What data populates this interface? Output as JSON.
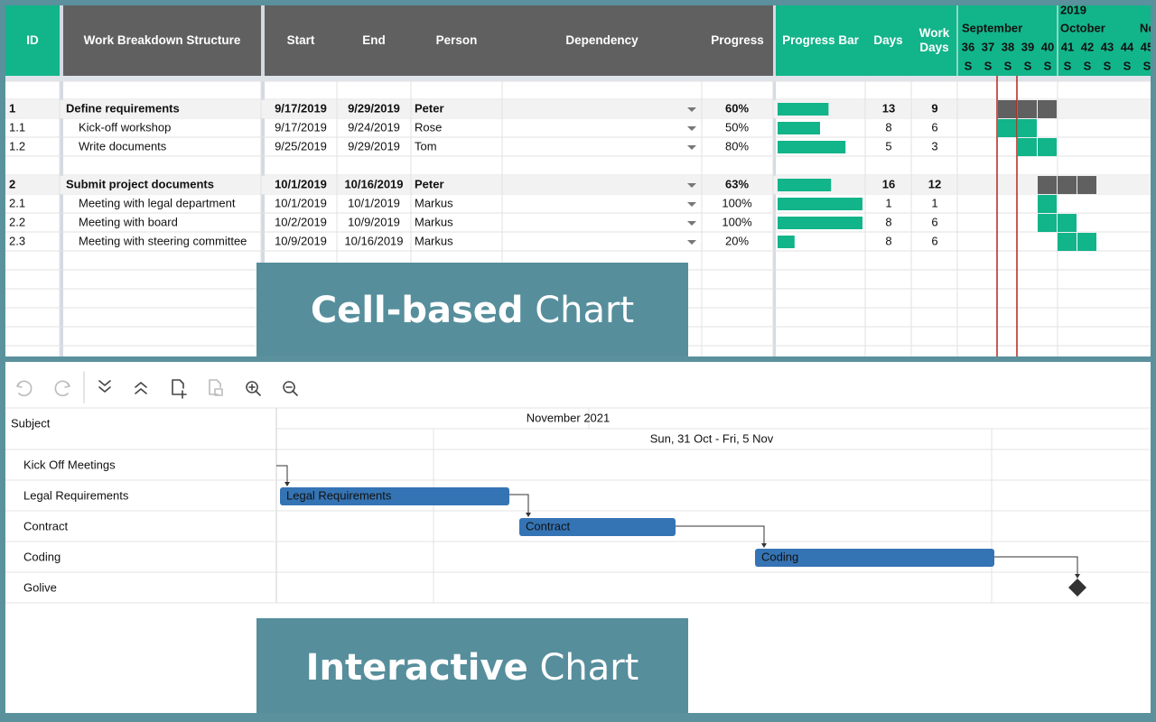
{
  "sheet": {
    "columns": [
      "ID",
      "Work Breakdown Structure",
      "Start",
      "End",
      "Person",
      "Dependency",
      "Progress",
      "Progress Bar",
      "Days",
      "Work Days"
    ],
    "year": "2019",
    "months": [
      "September",
      "October",
      "No"
    ],
    "weeks": [
      36,
      37,
      38,
      39,
      40,
      41,
      42,
      43,
      44,
      45
    ],
    "week_days": [
      "S",
      "S",
      "S",
      "S",
      "S",
      "S",
      "S",
      "S",
      "S",
      "S"
    ],
    "rows": [
      {
        "id": "1",
        "name": "Define requirements",
        "start": "9/17/2019",
        "end": "9/29/2019",
        "person": "Peter",
        "progress": {
          "value": 60,
          "label": "60%"
        },
        "days": 13,
        "work_days": 9,
        "weeks": [
          38,
          40
        ],
        "summary": true
      },
      {
        "id": "1.1",
        "name": "Kick-off workshop",
        "start": "9/17/2019",
        "end": "9/24/2019",
        "person": "Rose",
        "progress": {
          "value": 50,
          "label": "50%"
        },
        "days": 8,
        "work_days": 6,
        "weeks": [
          38,
          39
        ],
        "summary": false
      },
      {
        "id": "1.2",
        "name": "Write documents",
        "start": "9/25/2019",
        "end": "9/29/2019",
        "person": "Tom",
        "progress": {
          "value": 80,
          "label": "80%"
        },
        "days": 5,
        "work_days": 3,
        "weeks": [
          39,
          40
        ],
        "summary": false
      },
      {
        "id": "2",
        "name": "Submit project documents",
        "start": "10/1/2019",
        "end": "10/16/2019",
        "person": "Peter",
        "progress": {
          "value": 63,
          "label": "63%"
        },
        "days": 16,
        "work_days": 12,
        "weeks": [
          40,
          42
        ],
        "summary": true
      },
      {
        "id": "2.1",
        "name": "Meeting with legal department",
        "start": "10/1/2019",
        "end": "10/1/2019",
        "person": "Markus",
        "progress": {
          "value": 100,
          "label": "100%"
        },
        "days": 1,
        "work_days": 1,
        "weeks": [
          40,
          40
        ],
        "summary": false
      },
      {
        "id": "2.2",
        "name": "Meeting with board",
        "start": "10/2/2019",
        "end": "10/9/2019",
        "person": "Markus",
        "progress": {
          "value": 100,
          "label": "100%"
        },
        "days": 8,
        "work_days": 6,
        "weeks": [
          40,
          41
        ],
        "summary": false
      },
      {
        "id": "2.3",
        "name": "Meeting with steering committee",
        "start": "10/9/2019",
        "end": "10/16/2019",
        "person": "Markus",
        "progress": {
          "value": 20,
          "label": "20%"
        },
        "days": 8,
        "work_days": 6,
        "weeks": [
          41,
          42
        ],
        "summary": false
      }
    ]
  },
  "gantt": {
    "subject_header": "Subject",
    "month": "November 2021",
    "week": "Sun, 31 Oct - Fri, 5 Nov",
    "tasks": [
      {
        "name": "Kick Off Meetings"
      },
      {
        "name": "Legal Requirements"
      },
      {
        "name": "Contract"
      },
      {
        "name": "Coding"
      },
      {
        "name": "Golive"
      }
    ]
  },
  "banners": [
    {
      "bold": "Cell-based",
      "light": "Chart"
    },
    {
      "bold": "Interactive",
      "light": "Chart"
    }
  ]
}
